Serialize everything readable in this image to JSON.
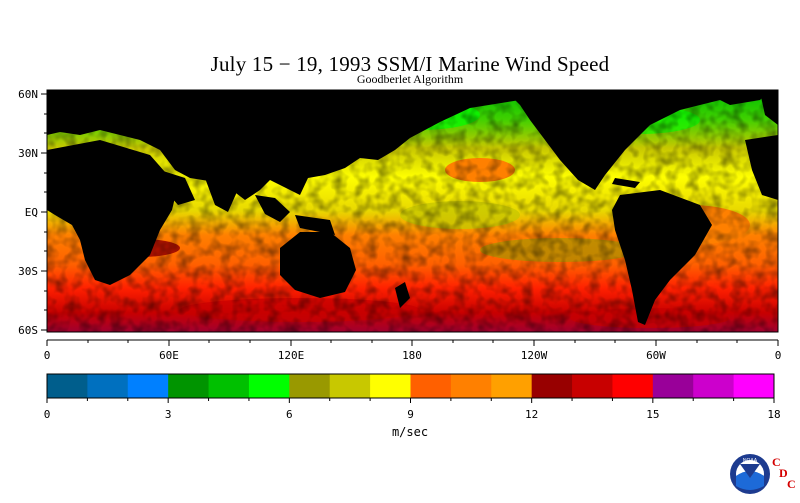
{
  "title": "July 15 − 19, 1993 SSM/I Marine Wind Speed",
  "subtitle": "Goodberlet Algorithm",
  "map": {
    "type": "heatmap",
    "lat_labels": [
      "60N",
      "30N",
      "EQ",
      "30S",
      "60S"
    ],
    "lon_labels": [
      "0",
      "60E",
      "120E",
      "180",
      "120W",
      "60W",
      "0"
    ],
    "land_color": "#000000"
  },
  "colorbar": {
    "unit_label": "m/sec",
    "range": [
      0,
      18
    ],
    "tick_labels": [
      "0",
      "3",
      "6",
      "9",
      "12",
      "15",
      "18"
    ],
    "colors": [
      "#005e8c",
      "#0070bf",
      "#0080ff",
      "#009400",
      "#00c000",
      "#00ff00",
      "#999900",
      "#c8c800",
      "#ffff00",
      "#ff6000",
      "#ff8000",
      "#ffa000",
      "#980000",
      "#c80000",
      "#ff0000",
      "#990099",
      "#cc00cc",
      "#ff00ff"
    ]
  },
  "logo": {
    "name": "noaa-logo",
    "text": "NOAA",
    "letters": [
      "C",
      "D",
      "C"
    ]
  }
}
